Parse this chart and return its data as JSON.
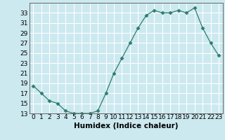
{
  "x": [
    0,
    1,
    2,
    3,
    4,
    5,
    6,
    7,
    8,
    9,
    10,
    11,
    12,
    13,
    14,
    15,
    16,
    17,
    18,
    19,
    20,
    21,
    22,
    23
  ],
  "y": [
    18.5,
    17.0,
    15.5,
    15.0,
    13.5,
    13.0,
    13.0,
    13.0,
    13.5,
    17.0,
    21.0,
    24.0,
    27.0,
    30.0,
    32.5,
    33.5,
    33.0,
    33.0,
    33.5,
    33.0,
    34.0,
    30.0,
    27.0,
    24.5
  ],
  "line_color": "#2e7d6e",
  "marker": "D",
  "markersize": 2.5,
  "bg_color": "#cce9f0",
  "grid_color": "#ffffff",
  "xlabel": "Humidex (Indice chaleur)",
  "ylim": [
    13,
    35
  ],
  "yticks": [
    13,
    15,
    17,
    19,
    21,
    23,
    25,
    27,
    29,
    31,
    33
  ],
  "xlim": [
    -0.5,
    23.5
  ],
  "xticks": [
    0,
    1,
    2,
    3,
    4,
    5,
    6,
    7,
    8,
    9,
    10,
    11,
    12,
    13,
    14,
    15,
    16,
    17,
    18,
    19,
    20,
    21,
    22,
    23
  ],
  "xlabel_fontsize": 7.5,
  "tick_fontsize": 6.5
}
